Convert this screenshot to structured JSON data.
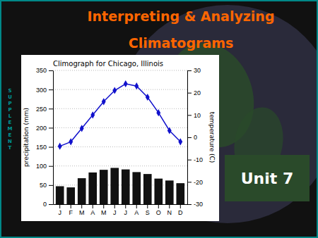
{
  "chart_data": {
    "type": "bar",
    "title": "Climograph for Chicago, Illinois",
    "annotations": [
      "Interpreting & Analyzing",
      "Climatograms",
      "S\nU\nP\nP\nL\nE\nM\nE\nN\nT",
      "Unit 7"
    ],
    "categories": [
      "J",
      "F",
      "M",
      "A",
      "M",
      "J",
      "J",
      "A",
      "S",
      "O",
      "N",
      "D"
    ],
    "series": [
      {
        "type": "bar",
        "color": "#111111",
        "values": [
          47,
          44,
          68,
          83,
          90,
          95,
          91,
          84,
          79,
          67,
          62,
          55
        ]
      },
      {
        "type": "line",
        "axis": "y2",
        "color": "#1111cc",
        "marker": "diamond",
        "values": [
          -4,
          -2,
          4,
          10,
          16,
          21,
          24,
          23,
          18,
          11,
          3,
          -2
        ]
      }
    ],
    "ylabel": "precipitation (mm)",
    "y2label": "temperature (C)",
    "ylim": [
      0,
      350
    ],
    "yticks": [
      0,
      50,
      100,
      150,
      200,
      250,
      300,
      350
    ],
    "y2lim": [
      -30,
      30
    ],
    "y2ticks": [
      -30,
      -20,
      -10,
      0,
      10,
      20,
      30
    ],
    "grid": true
  }
}
